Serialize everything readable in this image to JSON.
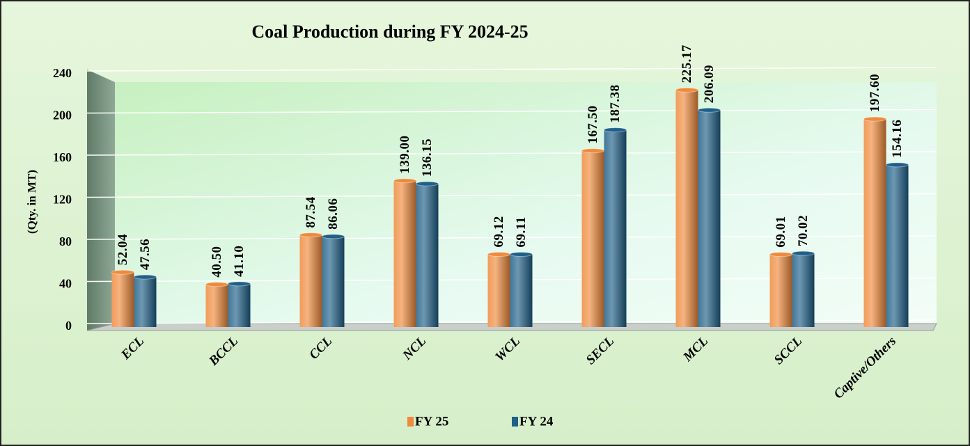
{
  "chart_data": {
    "type": "bar",
    "title": "Coal Production during FY 2024-25",
    "y_label": "(Qty. in MT)",
    "categories": [
      "ECL",
      "BCCL",
      "CCL",
      "NCL",
      "WCL",
      "SECL",
      "MCL",
      "SCCL",
      "Captive/Others"
    ],
    "series": [
      {
        "name": "FY 25",
        "color": "#ef8a3c",
        "values": [
          52.04,
          40.5,
          87.54,
          139.0,
          69.12,
          167.5,
          225.17,
          69.01,
          197.6
        ],
        "value_labels": [
          "52.04",
          "40.50",
          "87.54",
          "139.00",
          "69.12",
          "167.50",
          "225.17",
          "69.01",
          "197.60"
        ]
      },
      {
        "name": "FY 24",
        "color": "#1f6088",
        "values": [
          47.56,
          41.1,
          86.06,
          136.15,
          69.11,
          187.38,
          206.09,
          70.02,
          154.16
        ],
        "value_labels": [
          "47.56",
          "41.10",
          "86.06",
          "136.15",
          "69.11",
          "187.38",
          "206.09",
          "70.02",
          "154.16"
        ]
      }
    ],
    "ylim": [
      0,
      240
    ],
    "yticks": [
      0,
      40,
      80,
      120,
      160,
      200,
      240
    ],
    "grid": true,
    "legend": "bottom"
  }
}
